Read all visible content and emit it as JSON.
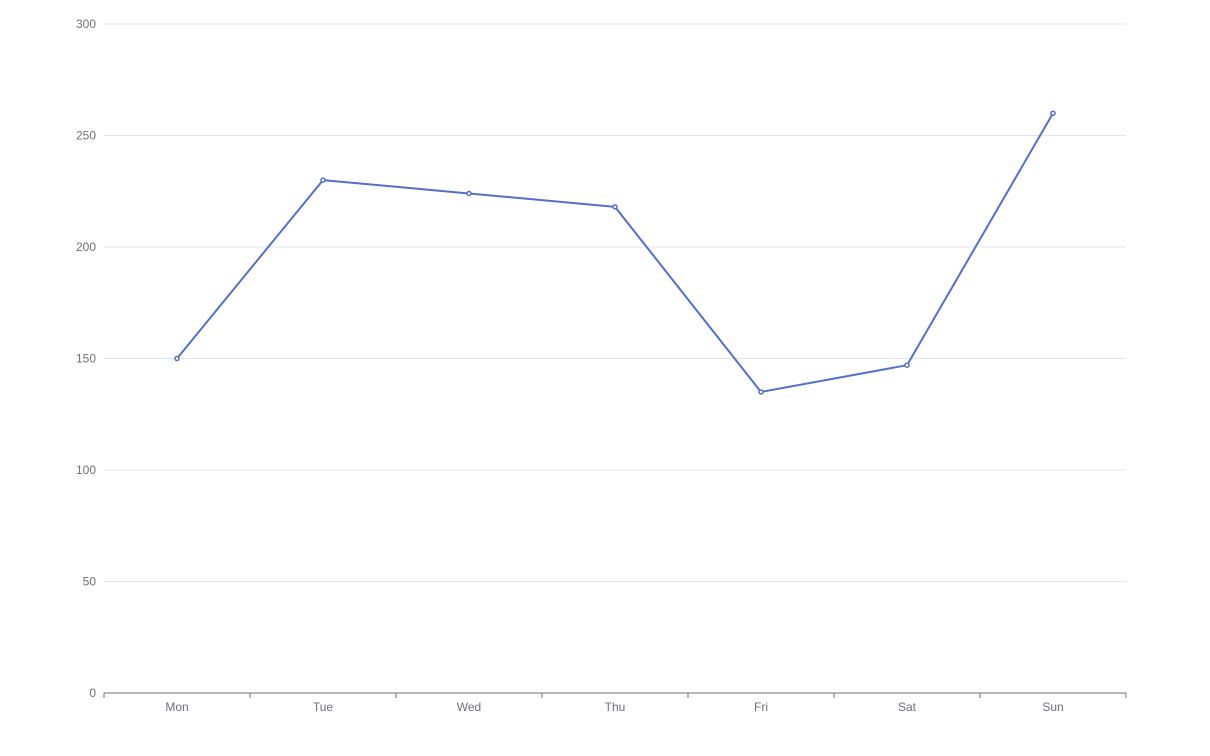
{
  "chart_data": {
    "type": "line",
    "title": "",
    "xlabel": "",
    "ylabel": "",
    "categories": [
      "Mon",
      "Tue",
      "Wed",
      "Thu",
      "Fri",
      "Sat",
      "Sun"
    ],
    "series": [
      {
        "values": [
          150,
          230,
          224,
          218,
          135,
          147,
          260
        ]
      }
    ],
    "ylim": [
      0,
      300
    ],
    "yticks": [
      0,
      50,
      100,
      150,
      200,
      250,
      300
    ],
    "grid": true,
    "legend": "none",
    "colors": {
      "line": "#5470c6",
      "grid": "#e0e6f1",
      "axis": "#6e7079",
      "label": "#6e7079"
    }
  }
}
